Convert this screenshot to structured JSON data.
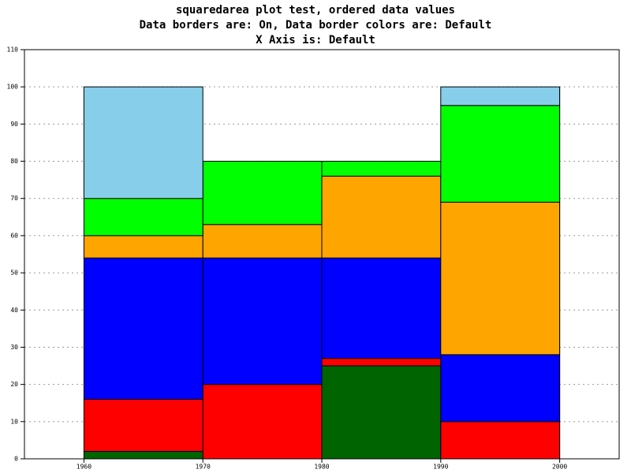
{
  "chart_data": {
    "type": "squaredarea",
    "title": [
      "squaredarea plot test, ordered data values",
      "Data borders are: On, Data border colors are: Default",
      "X Axis is: Default"
    ],
    "x": [
      1960,
      1970,
      1980,
      1990,
      2000
    ],
    "series": [
      {
        "color": "#006400",
        "values": [
          2,
          0,
          25,
          0,
          0
        ]
      },
      {
        "color": "#ff0000",
        "values": [
          14,
          20,
          2,
          10,
          10
        ]
      },
      {
        "color": "#0000ff",
        "values": [
          38,
          34,
          27,
          18,
          18
        ]
      },
      {
        "color": "#ffa500",
        "values": [
          6,
          9,
          22,
          41,
          41
        ]
      },
      {
        "color": "#00ff00",
        "values": [
          10,
          17,
          4,
          26,
          26
        ]
      },
      {
        "color": "#87ceeb",
        "values": [
          30,
          0,
          0,
          5,
          5
        ]
      }
    ],
    "xlim": [
      1955,
      2005
    ],
    "xticks": [
      1960,
      1970,
      1980,
      1990,
      2000
    ],
    "ylim": [
      0,
      110
    ],
    "yticks": [
      0,
      10,
      20,
      30,
      40,
      50,
      60,
      70,
      80,
      90,
      100,
      110
    ],
    "grid": true
  }
}
